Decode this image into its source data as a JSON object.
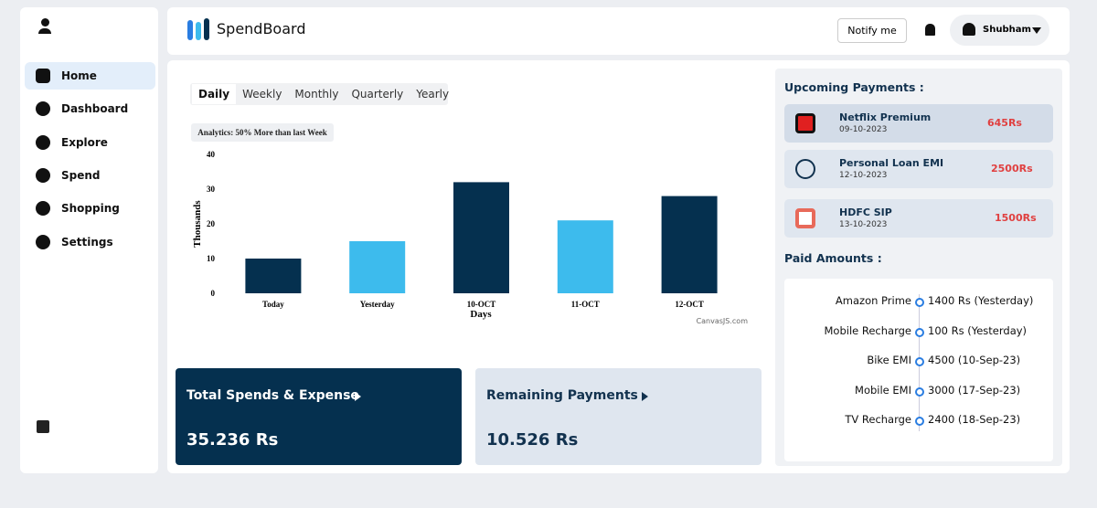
{
  "header": {
    "brand": "SpendBoard",
    "notify": "Notify me",
    "user": "Shubham"
  },
  "sidebar": {
    "items": [
      "Home",
      "Dashboard",
      "Explore",
      "Spend",
      "Shopping",
      "Settings"
    ]
  },
  "tabs": [
    "Daily",
    "Weekly",
    "Monthly",
    "Quarterly",
    "Yearly"
  ],
  "chart_data": {
    "type": "bar",
    "title": "Analytics: 50% More than last Week",
    "y_label": "Thousands",
    "x_label": "Days",
    "credit": "CanvasJS.com",
    "categories": [
      "Today",
      "Yesterday",
      "10-OCT",
      "11-OCT",
      "12-OCT"
    ],
    "values": [
      10,
      15,
      32,
      21,
      28
    ],
    "colors": [
      "#05304f",
      "#3dbbed",
      "#05304f",
      "#3dbbed",
      "#05304f"
    ],
    "ylim": [
      0,
      40
    ],
    "yticks": [
      0,
      10,
      20,
      30,
      40
    ],
    "grid": false
  },
  "cards": [
    {
      "title": "Total Spends & Expense",
      "amount": "35.236 Rs"
    },
    {
      "title": "Remaining Payments",
      "amount": "10.526 Rs"
    }
  ],
  "upcoming": {
    "title": "Upcoming Payments :",
    "items": [
      {
        "name": "Netflix Premium",
        "date": "09-10-2023",
        "amount": "645Rs"
      },
      {
        "name": "Personal Loan EMI",
        "date": "12-10-2023",
        "amount": "2500Rs"
      },
      {
        "name": "HDFC SIP",
        "date": "13-10-2023",
        "amount": "1500Rs"
      }
    ]
  },
  "paid": {
    "title": "Paid Amounts :",
    "items": [
      {
        "name": "Amazon Prime",
        "detail": "1400 Rs (Yesterday)"
      },
      {
        "name": "Mobile Recharge",
        "detail": "100 Rs (Yesterday)"
      },
      {
        "name": "Bike EMI",
        "detail": "4500 (10-Sep-23)"
      },
      {
        "name": "Mobile EMI",
        "detail": "3000 (17-Sep-23)"
      },
      {
        "name": "TV Recharge",
        "detail": "2400 (18-Sep-23)"
      }
    ]
  }
}
